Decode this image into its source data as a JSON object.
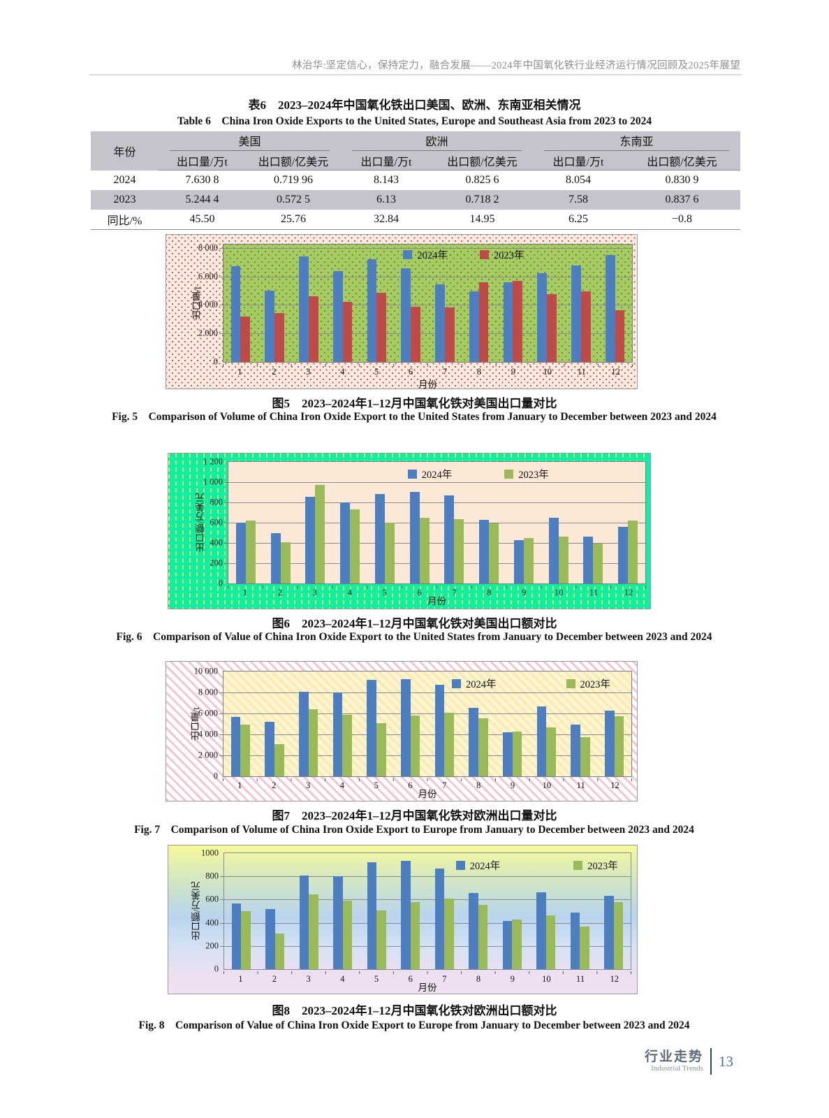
{
  "page": {
    "header": "林治华:坚定信心，保持定力，融合发展——2024年中国氧化铁行业经济运行情况回顾及2025年展望",
    "footer": {
      "section_zh": "行业走势",
      "section_en": "Industrial Trends",
      "page_number": "13"
    }
  },
  "table": {
    "title_zh": "表6　2023–2024年中国氧化铁出口美国、欧洲、东南亚相关情况",
    "title_en": "Table 6　China Iron Oxide Exports to the United States, Europe and Southeast Asia from 2023 to 2024",
    "col_year": "年份",
    "groups": [
      {
        "label": "美国"
      },
      {
        "label": "欧洲"
      },
      {
        "label": "东南亚"
      }
    ],
    "subheaders": [
      "出口量/万t",
      "出口额/亿美元",
      "出口量/万t",
      "出口额/亿美元",
      "出口量/万t",
      "出口额/亿美元"
    ],
    "rows": [
      {
        "label": "2024",
        "shaded": false,
        "values": [
          "7.630 8",
          "0.719 96",
          "8.143",
          "0.825 6",
          "8.054",
          "0.830 9"
        ]
      },
      {
        "label": "2023",
        "shaded": true,
        "values": [
          "5.244 4",
          "0.572 5",
          "6.13",
          "0.718 2",
          "7.58",
          "0.837 6"
        ]
      },
      {
        "label": "同比/%",
        "shaded": false,
        "values": [
          "45.50",
          "25.76",
          "32.84",
          "14.95",
          "6.25",
          "−0.8"
        ]
      }
    ]
  },
  "chart_data": [
    {
      "id": "fig5",
      "type": "bar",
      "title": "",
      "ylabel": "出口量/t",
      "xlabel": "月份",
      "ymax": 8240,
      "ylim": [
        0,
        8240
      ],
      "grid": true,
      "legend_position": "inside-top",
      "yticks": [
        {
          "value": 0,
          "label": "0"
        },
        {
          "value": 2000,
          "label": "2 000"
        },
        {
          "value": 4000,
          "label": "4 000"
        },
        {
          "value": 6000,
          "label": "6 000"
        },
        {
          "value": 8000,
          "label": "8 000"
        }
      ],
      "categories": [
        "1",
        "2",
        "3",
        "4",
        "5",
        "6",
        "7",
        "8",
        "9",
        "10",
        "11",
        "12"
      ],
      "series": [
        {
          "name": "2024年",
          "color": "#4d7ebf",
          "values": [
            6700,
            5000,
            7400,
            6400,
            7200,
            6550,
            5450,
            4950,
            5600,
            6250,
            6750,
            7500
          ]
        },
        {
          "name": "2023年",
          "color": "#bf4b48",
          "values": [
            3200,
            3450,
            4600,
            4200,
            4850,
            3900,
            3850,
            5600,
            5700,
            4750,
            4950,
            3650
          ]
        }
      ],
      "caption_zh": "图5　2023–2024年1–12月中国氧化铁对美国出口量对比",
      "caption_en": "Fig. 5　Comparison of Volume of China Iron Oxide Export to the United States from January to December between 2023 and 2024"
    },
    {
      "id": "fig6",
      "type": "bar",
      "title": "",
      "ylabel": "出口额/万美元",
      "xlabel": "月份",
      "ymax": 1200,
      "ylim": [
        0,
        1200
      ],
      "grid": true,
      "legend_position": "inside-top",
      "yticks": [
        {
          "value": 0,
          "label": "0"
        },
        {
          "value": 200,
          "label": "200"
        },
        {
          "value": 400,
          "label": "400"
        },
        {
          "value": 600,
          "label": "600"
        },
        {
          "value": 800,
          "label": "800"
        },
        {
          "value": 1000,
          "label": "1 000"
        },
        {
          "value": 1200,
          "label": "1 200"
        }
      ],
      "categories": [
        "1",
        "2",
        "3",
        "4",
        "5",
        "6",
        "7",
        "8",
        "9",
        "10",
        "11",
        "12"
      ],
      "series": [
        {
          "name": "2024年",
          "color": "#4d7ebf",
          "values": [
            600,
            500,
            855,
            800,
            880,
            905,
            870,
            630,
            425,
            645,
            460,
            560
          ]
        },
        {
          "name": "2023年",
          "color": "#9aba59",
          "values": [
            620,
            405,
            975,
            730,
            600,
            645,
            635,
            590,
            450,
            465,
            395,
            620
          ]
        }
      ],
      "caption_zh": "图6　2023–2024年1–12月中国氧化铁对美国出口额对比",
      "caption_en": "Fig. 6　Comparison of Value of China Iron Oxide Export to the United States from January to December between 2023 and 2024"
    },
    {
      "id": "fig7",
      "type": "bar",
      "title": "",
      "ylabel": "出口量/t",
      "xlabel": "月份",
      "ymax": 10000,
      "ylim": [
        0,
        10000
      ],
      "grid": true,
      "legend_position": "inside-top-right",
      "yticks": [
        {
          "value": 0,
          "label": "0"
        },
        {
          "value": 2000,
          "label": "2 000"
        },
        {
          "value": 4000,
          "label": "4 000"
        },
        {
          "value": 6000,
          "label": "6 000"
        },
        {
          "value": 8000,
          "label": "8 000"
        },
        {
          "value": 10000,
          "label": "10 000"
        }
      ],
      "categories": [
        "1",
        "2",
        "3",
        "4",
        "5",
        "6",
        "7",
        "8",
        "9",
        "10",
        "11",
        "12"
      ],
      "series": [
        {
          "name": "2024年",
          "color": "#4d7ebf",
          "values": [
            5700,
            5200,
            8100,
            8000,
            9200,
            9300,
            8750,
            6550,
            4200,
            6650,
            4950,
            6300
          ]
        },
        {
          "name": "2023年",
          "color": "#9aba59",
          "values": [
            4950,
            3100,
            6400,
            5850,
            5050,
            5800,
            6050,
            5550,
            4300,
            4700,
            3750,
            5750
          ]
        }
      ],
      "caption_zh": "图7　2023–2024年1–12月中国氧化铁对欧洲出口量对比",
      "caption_en": "Fig. 7　Comparison of Volume of China Iron Oxide Export to Europe from January to December between 2023 and 2024"
    },
    {
      "id": "fig8",
      "type": "bar",
      "title": "",
      "ylabel": "出口额/万美元",
      "xlabel": "月份",
      "ymax": 1000,
      "ylim": [
        0,
        1000
      ],
      "grid": true,
      "legend_position": "inside-top-right",
      "yticks": [
        {
          "value": 0,
          "label": "0"
        },
        {
          "value": 200,
          "label": "200"
        },
        {
          "value": 400,
          "label": "400"
        },
        {
          "value": 600,
          "label": "600"
        },
        {
          "value": 800,
          "label": "800"
        },
        {
          "value": 1000,
          "label": "1000"
        }
      ],
      "categories": [
        "1",
        "2",
        "3",
        "4",
        "5",
        "6",
        "7",
        "8",
        "9",
        "10",
        "11",
        "12"
      ],
      "series": [
        {
          "name": "2024年",
          "color": "#4d7ebf",
          "values": [
            565,
            520,
            805,
            800,
            920,
            935,
            870,
            655,
            415,
            665,
            490,
            630
          ]
        },
        {
          "name": "2023年",
          "color": "#9aba59",
          "values": [
            500,
            305,
            645,
            590,
            505,
            580,
            610,
            555,
            425,
            465,
            370,
            580
          ]
        }
      ],
      "caption_zh": "图8　2023–2024年1–12月中国氧化铁对欧洲出口额对比",
      "caption_en": "Fig. 8　Comparison of Value of China Iron Oxide Export to Europe from January to December between 2023 and 2024"
    }
  ]
}
